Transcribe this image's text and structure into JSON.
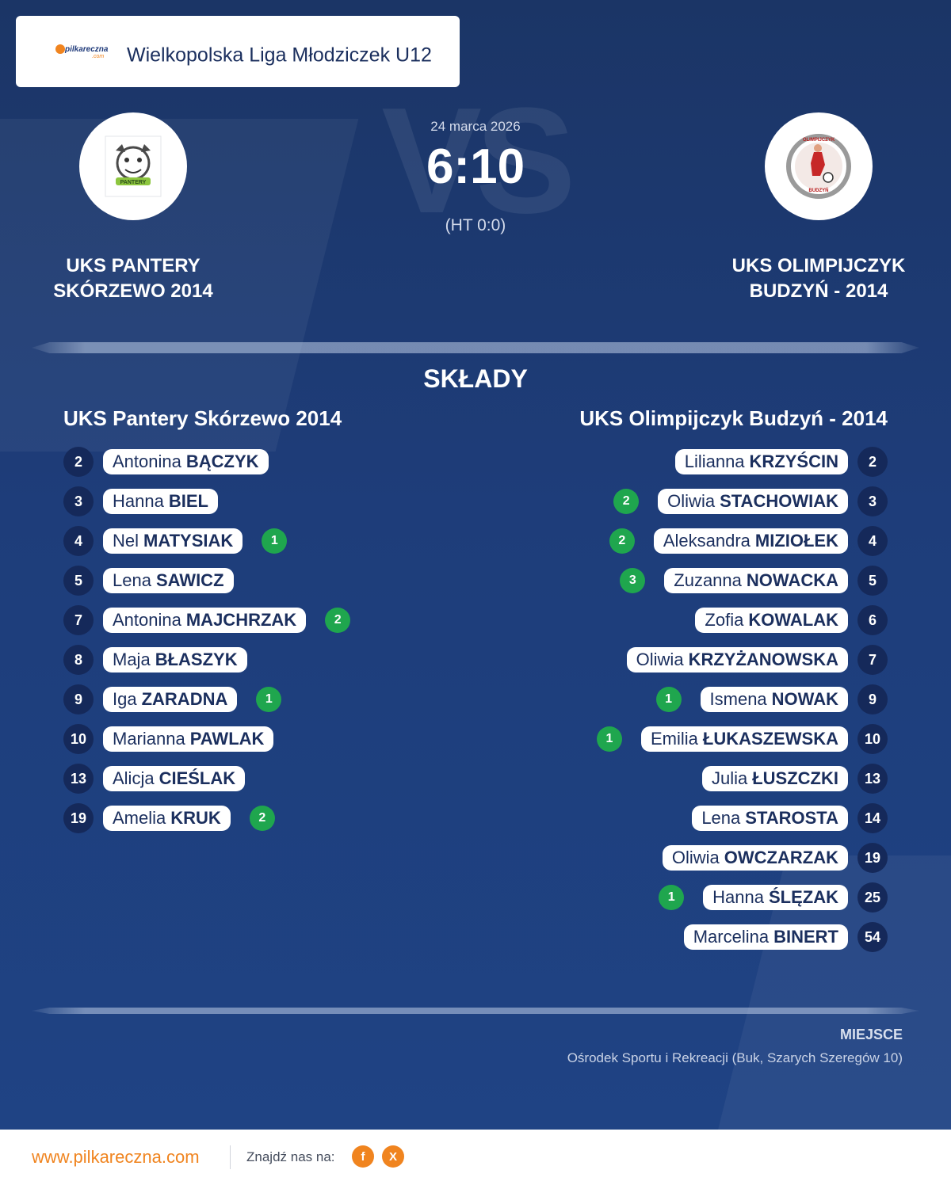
{
  "league": {
    "title": "Wielkopolska Liga Młodziczek U12",
    "logo_brand": "pilkareczna",
    "logo_sub": ".com"
  },
  "match": {
    "date": "24 marca 2026",
    "score": "6:10",
    "halftime": "(HT 0:0)",
    "vs_watermark": "VS"
  },
  "home_team": {
    "name_line1": "UKS PANTERY",
    "name_line2": "SKÓRZEWO 2014",
    "lineup_title": "UKS Pantery Skórzewo 2014",
    "logo_text": "PANTERY",
    "players": [
      {
        "number": "2",
        "first": "Antonina",
        "last": "BĄCZYK",
        "goals": ""
      },
      {
        "number": "3",
        "first": "Hanna",
        "last": "BIEL",
        "goals": ""
      },
      {
        "number": "4",
        "first": "Nel",
        "last": "MATYSIAK",
        "goals": "1"
      },
      {
        "number": "5",
        "first": "Lena",
        "last": "SAWICZ",
        "goals": ""
      },
      {
        "number": "7",
        "first": "Antonina",
        "last": "MAJCHRZAK",
        "goals": "2"
      },
      {
        "number": "8",
        "first": "Maja",
        "last": "BŁASZYK",
        "goals": ""
      },
      {
        "number": "9",
        "first": "Iga",
        "last": "ZARADNA",
        "goals": "1"
      },
      {
        "number": "10",
        "first": "Marianna",
        "last": "PAWLAK",
        "goals": ""
      },
      {
        "number": "13",
        "first": "Alicja",
        "last": "CIEŚLAK",
        "goals": ""
      },
      {
        "number": "19",
        "first": "Amelia",
        "last": "KRUK",
        "goals": "2"
      }
    ]
  },
  "away_team": {
    "name_line1": "UKS OLIMPIJCZYK",
    "name_line2": "BUDZYŃ - 2014",
    "lineup_title": "UKS Olimpijczyk Budzyń - 2014",
    "logo_text_top": "OLIMPIJCZYK",
    "logo_text_bottom": "BUDZYŃ",
    "players": [
      {
        "number": "2",
        "first": "Lilianna",
        "last": "KRZYŚCIN",
        "goals": ""
      },
      {
        "number": "3",
        "first": "Oliwia",
        "last": "STACHOWIAK",
        "goals": "2"
      },
      {
        "number": "4",
        "first": "Aleksandra",
        "last": "MIZIOŁEK",
        "goals": "2"
      },
      {
        "number": "5",
        "first": "Zuzanna",
        "last": "NOWACKA",
        "goals": "3"
      },
      {
        "number": "6",
        "first": "Zofia",
        "last": "KOWALAK",
        "goals": ""
      },
      {
        "number": "7",
        "first": "Oliwia",
        "last": "KRZYŻANOWSKA",
        "goals": ""
      },
      {
        "number": "9",
        "first": "Ismena",
        "last": "NOWAK",
        "goals": "1"
      },
      {
        "number": "10",
        "first": "Emilia",
        "last": "ŁUKASZEWSKA",
        "goals": "1"
      },
      {
        "number": "13",
        "first": "Julia",
        "last": "ŁUSZCZKI",
        "goals": ""
      },
      {
        "number": "14",
        "first": "Lena",
        "last": "STAROSTA",
        "goals": ""
      },
      {
        "number": "19",
        "first": "Oliwia",
        "last": "OWCZARZAK",
        "goals": ""
      },
      {
        "number": "25",
        "first": "Hanna",
        "last": "ŚLĘZAK",
        "goals": "1"
      },
      {
        "number": "54",
        "first": "Marcelina",
        "last": "BINERT",
        "goals": ""
      }
    ]
  },
  "section_title": "SKŁADY",
  "venue": {
    "label": "MIEJSCE",
    "value": "Ośrodek Sportu i Rekreacji (Buk, Szarych Szeregów 10)"
  },
  "footer": {
    "url": "www.pilkareczna.com",
    "find_us": "Znajdź nas na:",
    "social": [
      {
        "icon": "facebook-icon",
        "glyph": "f"
      },
      {
        "icon": "x-icon",
        "glyph": "X"
      }
    ]
  },
  "colors": {
    "background": "#1e3d7a",
    "number_badge": "#15295a",
    "goal_badge": "#1fa64e",
    "accent": "#f0841f"
  }
}
